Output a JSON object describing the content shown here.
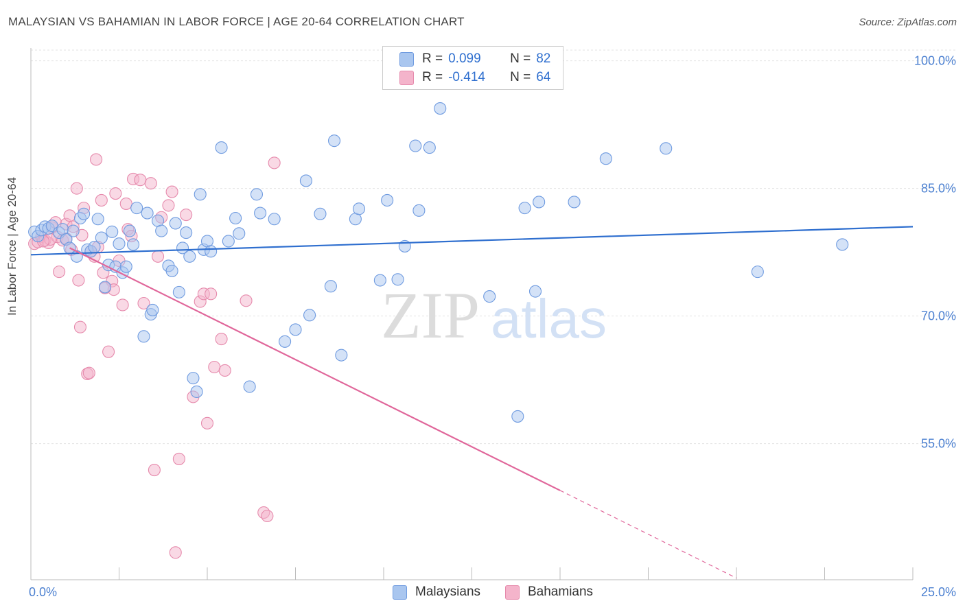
{
  "header": {
    "title": "MALAYSIAN VS BAHAMIAN IN LABOR FORCE | AGE 20-64 CORRELATION CHART",
    "source": "Source: ZipAtlas.com"
  },
  "colors": {
    "blue": "#2f6fcf",
    "blue_fill": "#a9c6ef",
    "pink": "#e0669a",
    "pink_fill": "#f4b4cb",
    "grid": "#e3e3e3"
  },
  "legend_top": {
    "rows": [
      {
        "r_label": "R =",
        "r_value": "0.099",
        "n_label": "N =",
        "n_value": "82"
      },
      {
        "r_label": "R =",
        "r_value": "-0.414",
        "n_label": "N =",
        "n_value": "64"
      }
    ]
  },
  "legend_bottom": {
    "series1": "Malaysians",
    "series2": "Bahamians"
  },
  "watermark": {
    "zip": "ZIP",
    "atlas": "atlas"
  },
  "chart_data": {
    "type": "scatter",
    "title": "MALAYSIAN VS BAHAMIAN IN LABOR FORCE | AGE 20-64 CORRELATION CHART",
    "xlabel": "",
    "ylabel": "In Labor Force | Age 20-64",
    "xlim": [
      0,
      25
    ],
    "ylim": [
      39,
      101.5
    ],
    "x_tick_labels": [
      "0.0%",
      "25.0%"
    ],
    "x_ticks": [
      0,
      25
    ],
    "y_ticks": [
      100,
      85,
      70,
      55
    ],
    "y_tick_labels": [
      "100.0%",
      "85.0%",
      "70.0%",
      "55.0%"
    ],
    "grid": true,
    "series": [
      {
        "name": "Malaysians",
        "R": 0.099,
        "N": 82,
        "trend": {
          "x0": 0,
          "y0": 77.2,
          "x1": 25,
          "y1": 80.5
        },
        "points": [
          [
            0.1,
            79.9
          ],
          [
            0.2,
            79.4
          ],
          [
            0.3,
            80.1
          ],
          [
            0.4,
            80.5
          ],
          [
            0.5,
            80.3
          ],
          [
            0.6,
            80.6
          ],
          [
            0.8,
            79.8
          ],
          [
            0.9,
            80.2
          ],
          [
            1.0,
            79.0
          ],
          [
            1.1,
            78.0
          ],
          [
            1.2,
            80.0
          ],
          [
            1.3,
            77.0
          ],
          [
            1.4,
            81.5
          ],
          [
            1.5,
            82.0
          ],
          [
            1.6,
            77.8
          ],
          [
            1.7,
            77.6
          ],
          [
            1.8,
            78.1
          ],
          [
            1.9,
            81.4
          ],
          [
            2.0,
            79.2
          ],
          [
            2.1,
            73.4
          ],
          [
            2.2,
            76.0
          ],
          [
            2.3,
            79.9
          ],
          [
            2.4,
            75.8
          ],
          [
            2.5,
            78.5
          ],
          [
            2.6,
            75.1
          ],
          [
            2.7,
            75.8
          ],
          [
            2.8,
            80.0
          ],
          [
            2.9,
            78.4
          ],
          [
            3.0,
            82.7
          ],
          [
            3.2,
            67.6
          ],
          [
            3.3,
            82.1
          ],
          [
            3.4,
            70.2
          ],
          [
            3.45,
            70.7
          ],
          [
            3.6,
            81.2
          ],
          [
            3.7,
            80.0
          ],
          [
            3.9,
            75.9
          ],
          [
            4.0,
            75.3
          ],
          [
            4.1,
            80.9
          ],
          [
            4.2,
            72.8
          ],
          [
            4.3,
            78.0
          ],
          [
            4.4,
            79.8
          ],
          [
            4.5,
            77.0
          ],
          [
            4.6,
            62.7
          ],
          [
            4.7,
            61.1
          ],
          [
            4.8,
            84.3
          ],
          [
            4.9,
            77.8
          ],
          [
            5.0,
            78.8
          ],
          [
            5.1,
            77.6
          ],
          [
            5.4,
            89.8
          ],
          [
            5.6,
            78.8
          ],
          [
            5.8,
            81.5
          ],
          [
            5.9,
            79.7
          ],
          [
            6.2,
            61.7
          ],
          [
            6.4,
            84.3
          ],
          [
            6.5,
            82.1
          ],
          [
            6.9,
            81.4
          ],
          [
            7.2,
            67.0
          ],
          [
            7.5,
            68.4
          ],
          [
            7.8,
            85.9
          ],
          [
            7.9,
            70.1
          ],
          [
            8.2,
            82.0
          ],
          [
            8.5,
            73.5
          ],
          [
            8.6,
            90.6
          ],
          [
            8.8,
            65.4
          ],
          [
            9.2,
            81.4
          ],
          [
            9.3,
            82.6
          ],
          [
            9.9,
            74.2
          ],
          [
            10.1,
            83.6
          ],
          [
            10.4,
            74.3
          ],
          [
            10.6,
            78.2
          ],
          [
            10.9,
            90.0
          ],
          [
            11.0,
            82.4
          ],
          [
            11.3,
            89.8
          ],
          [
            11.6,
            94.4
          ],
          [
            13.0,
            72.3
          ],
          [
            13.8,
            58.2
          ],
          [
            14.0,
            82.7
          ],
          [
            14.3,
            72.9
          ],
          [
            14.4,
            83.4
          ],
          [
            15.4,
            83.4
          ],
          [
            16.3,
            88.5
          ],
          [
            18.0,
            89.7
          ],
          [
            20.6,
            75.2
          ],
          [
            23.0,
            78.4
          ]
        ]
      },
      {
        "name": "Bahamians",
        "R": -0.414,
        "N": 64,
        "trend": {
          "x0": 1.1,
          "y0": 78.0,
          "x1": 15.0,
          "y1": 49.5
        },
        "trend_dashed": {
          "x0": 15.0,
          "y0": 49.5,
          "x1": 20.0,
          "y1": 39.2
        },
        "points": [
          [
            0.1,
            78.5
          ],
          [
            0.2,
            78.7
          ],
          [
            0.3,
            79.3
          ],
          [
            0.4,
            78.9
          ],
          [
            0.5,
            78.6
          ],
          [
            0.6,
            80.4
          ],
          [
            0.7,
            81.0
          ],
          [
            0.75,
            79.3
          ],
          [
            0.8,
            75.2
          ],
          [
            0.9,
            78.9
          ],
          [
            1.0,
            80.8
          ],
          [
            1.1,
            81.8
          ],
          [
            1.15,
            77.8
          ],
          [
            1.2,
            80.5
          ],
          [
            1.3,
            85.0
          ],
          [
            1.35,
            74.2
          ],
          [
            1.4,
            68.7
          ],
          [
            1.5,
            82.7
          ],
          [
            1.6,
            63.2
          ],
          [
            1.65,
            63.3
          ],
          [
            1.7,
            77.6
          ],
          [
            1.8,
            77.0
          ],
          [
            1.85,
            88.4
          ],
          [
            1.9,
            78.1
          ],
          [
            2.0,
            83.6
          ],
          [
            2.05,
            75.1
          ],
          [
            2.2,
            65.8
          ],
          [
            2.3,
            74.1
          ],
          [
            2.35,
            73.1
          ],
          [
            2.4,
            84.4
          ],
          [
            2.5,
            76.5
          ],
          [
            2.6,
            71.3
          ],
          [
            2.7,
            83.2
          ],
          [
            2.75,
            80.2
          ],
          [
            2.9,
            86.1
          ],
          [
            3.1,
            86.0
          ],
          [
            3.2,
            71.5
          ],
          [
            3.4,
            85.6
          ],
          [
            3.5,
            51.9
          ],
          [
            3.6,
            77.0
          ],
          [
            3.7,
            81.6
          ],
          [
            3.9,
            83.0
          ],
          [
            4.0,
            84.6
          ],
          [
            4.1,
            42.2
          ],
          [
            4.2,
            53.2
          ],
          [
            4.4,
            81.9
          ],
          [
            4.6,
            60.5
          ],
          [
            4.8,
            71.7
          ],
          [
            4.9,
            72.6
          ],
          [
            5.0,
            57.4
          ],
          [
            5.1,
            72.6
          ],
          [
            5.2,
            64.0
          ],
          [
            5.4,
            67.3
          ],
          [
            5.5,
            63.6
          ],
          [
            6.1,
            71.8
          ],
          [
            6.6,
            46.9
          ],
          [
            6.7,
            46.5
          ],
          [
            6.9,
            88.0
          ],
          [
            2.1,
            73.3
          ],
          [
            1.0,
            79.1
          ],
          [
            0.55,
            79.0
          ],
          [
            0.35,
            78.8
          ],
          [
            1.45,
            79.5
          ],
          [
            2.85,
            79.4
          ]
        ]
      }
    ]
  }
}
